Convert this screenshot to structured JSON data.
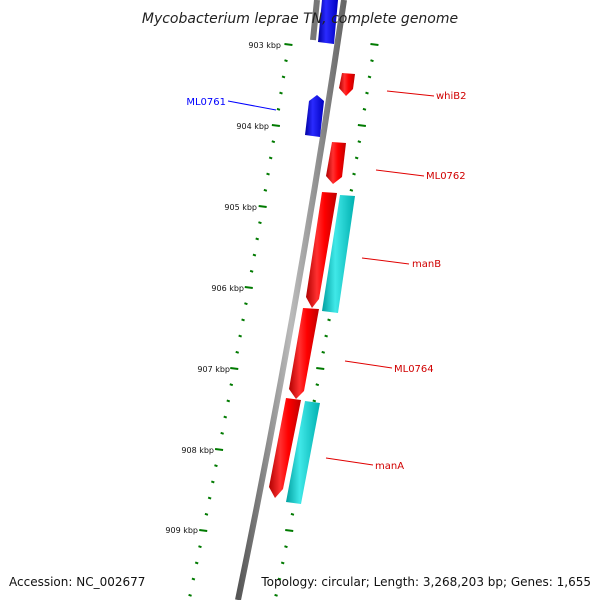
{
  "title": "Mycobacterium leprae TN, complete genome",
  "footer": {
    "accession": "Accession: NC_002677",
    "summary": "Topology: circular; Length: 3,268,203 bp; Genes: 1,655"
  },
  "colors": {
    "forward_gene": "#ff0000",
    "reverse_gene": "#0000ff",
    "forward_feature": "#00c8c8",
    "backbone": "#808080",
    "ticks": "#007a00"
  },
  "ticks": [
    "903 kbp",
    "904 kbp",
    "905 kbp",
    "906 kbp",
    "907 kbp",
    "908 kbp",
    "909 kbp"
  ],
  "genes": [
    {
      "label": "",
      "strand": "reverse",
      "track": "top"
    },
    {
      "label": "ML0761",
      "strand": "reverse",
      "track": "gene"
    },
    {
      "label": "whiB2",
      "strand": "forward",
      "track": "gene"
    },
    {
      "label": "ML0762",
      "strand": "forward",
      "track": "gene"
    },
    {
      "label": "manB",
      "strand": "forward",
      "track": "gene+feature"
    },
    {
      "label": "ML0764",
      "strand": "forward",
      "track": "gene"
    },
    {
      "label": "manA",
      "strand": "forward",
      "track": "gene+feature"
    }
  ]
}
